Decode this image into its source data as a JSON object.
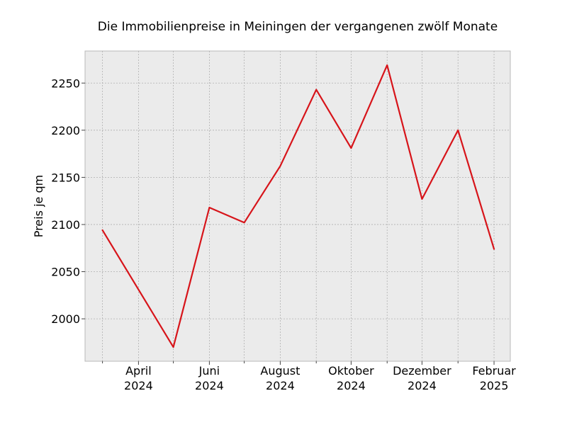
{
  "chart_data": {
    "type": "line",
    "title": "Die Immobilienpreise in Meiningen der vergangenen zwölf Monate",
    "xlabel": "",
    "ylabel": "Preis je qm",
    "x": [
      "2024-03-01",
      "2024-04-01",
      "2024-05-01",
      "2024-06-01",
      "2024-07-01",
      "2024-08-01",
      "2024-09-01",
      "2024-10-01",
      "2024-11-01",
      "2024-12-01",
      "2025-01-01",
      "2025-02-01"
    ],
    "series": [
      {
        "color": "#d7141a",
        "values": [
          2094,
          2031,
          1970,
          2118,
          2102,
          2162,
          2243,
          2181,
          2269,
          2127,
          2200,
          2074
        ]
      }
    ],
    "xlim": [
      "2024-02-15",
      "2025-02-15"
    ],
    "ylim": [
      1955,
      2284
    ],
    "yticks": [
      2000,
      2050,
      2100,
      2150,
      2200,
      2250
    ],
    "xticks_major": [
      {
        "date": "2024-04-01",
        "month": "April",
        "year": "2024"
      },
      {
        "date": "2024-06-01",
        "month": "Juni",
        "year": "2024"
      },
      {
        "date": "2024-08-01",
        "month": "August",
        "year": "2024"
      },
      {
        "date": "2024-10-01",
        "month": "Oktober",
        "year": "2024"
      },
      {
        "date": "2024-12-01",
        "month": "Dezember",
        "year": "2024"
      },
      {
        "date": "2025-02-01",
        "month": "Februar",
        "year": "2025"
      }
    ],
    "grid": true,
    "legend": "none",
    "colors": {
      "background": "#ebebeb",
      "grid": "#b0b0b0",
      "line": "#d7141a"
    }
  }
}
